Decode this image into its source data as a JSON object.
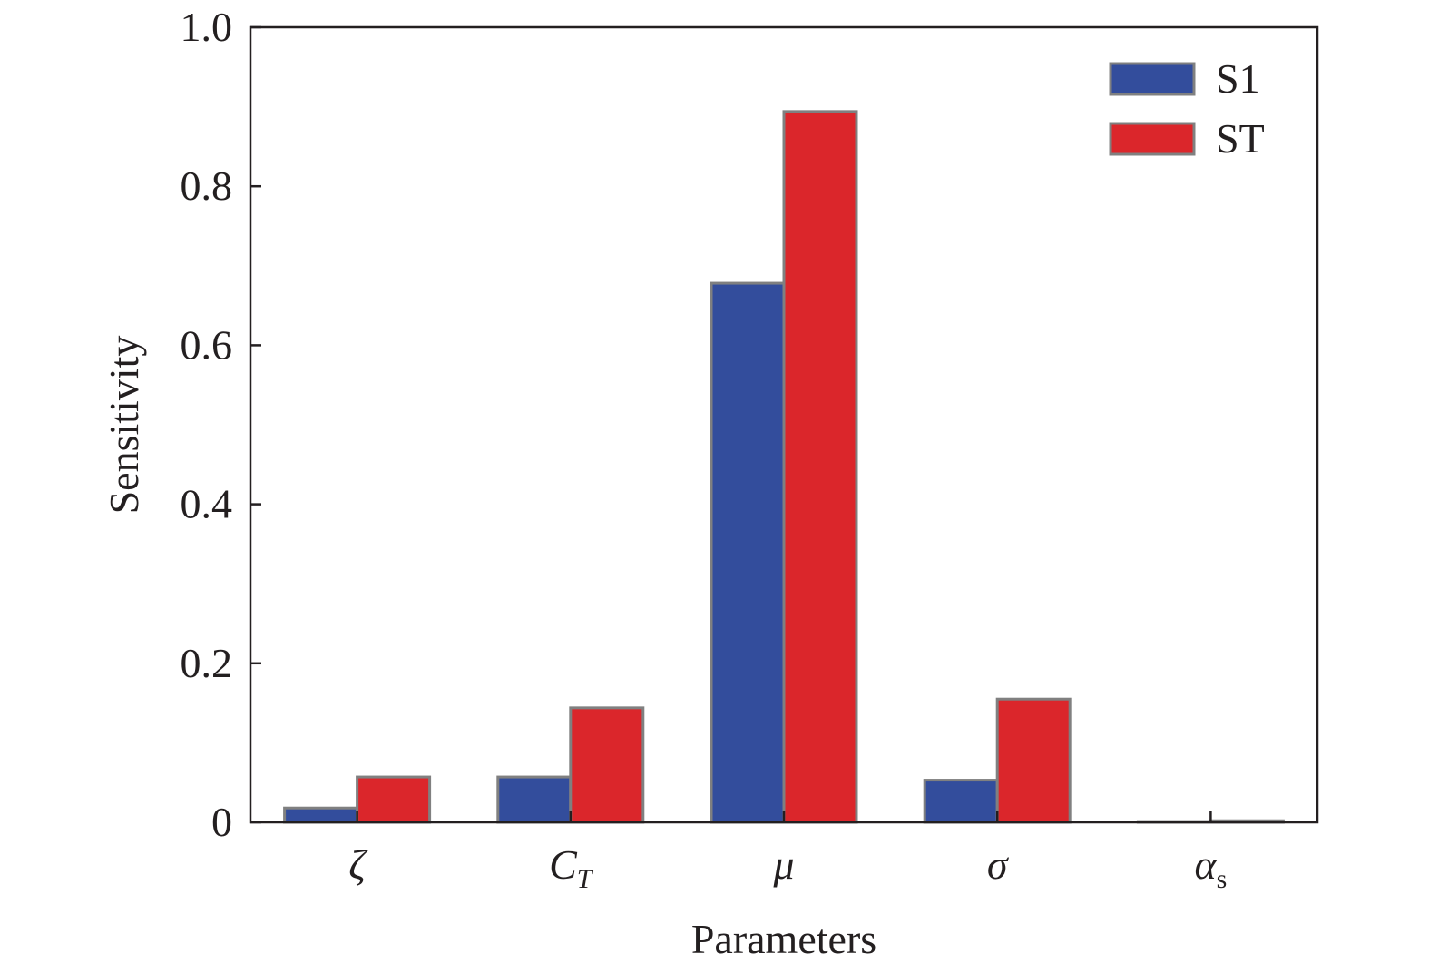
{
  "chart_data": {
    "type": "bar",
    "title": "",
    "xlabel": "Parameters",
    "ylabel": "Sensitivity",
    "ylim": [
      0,
      1.0
    ],
    "yticks": [
      {
        "value": 0,
        "label": "0"
      },
      {
        "value": 0.2,
        "label": "0.2"
      },
      {
        "value": 0.4,
        "label": "0.4"
      },
      {
        "value": 0.6,
        "label": "0.6"
      },
      {
        "value": 0.8,
        "label": "0.8"
      },
      {
        "value": 1.0,
        "label": "1.0"
      }
    ],
    "categories": [
      {
        "main": "ζ",
        "sub": ""
      },
      {
        "main": "C",
        "sub": "T"
      },
      {
        "main": "μ",
        "sub": ""
      },
      {
        "main": "σ",
        "sub": ""
      },
      {
        "main": "α",
        "sub": "s"
      }
    ],
    "series": [
      {
        "name": "S1",
        "color": "#334d9c",
        "values": [
          0.018,
          0.057,
          0.678,
          0.053,
          0.001
        ]
      },
      {
        "name": "ST",
        "color": "#db262b",
        "values": [
          0.057,
          0.144,
          0.894,
          0.155,
          0.002
        ]
      }
    ],
    "grid": false,
    "legend_position": "top-right",
    "bar_edge_color": "#808080"
  }
}
